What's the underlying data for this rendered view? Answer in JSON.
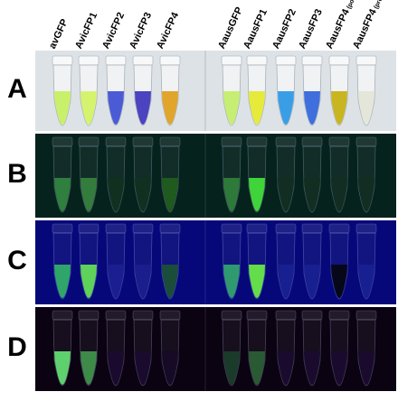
{
  "columns": [
    {
      "name": "avGFP",
      "sub": ""
    },
    {
      "name": "AvicFP1",
      "sub": ""
    },
    {
      "name": "AvicFP2",
      "sub": ""
    },
    {
      "name": "AvicFP3",
      "sub": ""
    },
    {
      "name": "AvicFP4",
      "sub": ""
    },
    {
      "name": "AausGFP",
      "sub": ""
    },
    {
      "name": "AausFP1",
      "sub": ""
    },
    {
      "name": "AausFP2",
      "sub": ""
    },
    {
      "name": "AausFP3",
      "sub": ""
    },
    {
      "name": "AausFP4",
      "sub": "(post)"
    },
    {
      "name": "AausFP4",
      "sub": "(pre)"
    }
  ],
  "rows": [
    {
      "label": "A",
      "background": "#dde2e6",
      "liquid": [
        "#c8f06a",
        "#d6f36e",
        "#4b5bd6",
        "#4b43c0",
        "#e0a52a",
        "#c6ee72",
        "#e6ea3a",
        "#3a9ee6",
        "#3f6fdc",
        "#c9b520",
        "#e4e6da"
      ]
    },
    {
      "label": "B",
      "background": "#06221c",
      "liquid": [
        "#2f7f3e",
        "#347c3c",
        "#12301f",
        "#11301f",
        "#1f5a1e",
        "#2e7a3a",
        "#3fd43a",
        "#122e22",
        "#122e22",
        "#122e22",
        "#122e22"
      ]
    },
    {
      "label": "C",
      "background": "#06087a",
      "liquid": [
        "#2fa56a",
        "#5fd25a",
        "#1a1e90",
        "#1a1e8c",
        "#1a4e3a",
        "#2f9a70",
        "#63dd4a",
        "#181f90",
        "#181f90",
        "#06081a",
        "#181f90"
      ]
    },
    {
      "label": "D",
      "background": "#0b0212",
      "liquid": [
        "#5fd06e",
        "#3e8a48",
        "#1a0b2e",
        "#1a0b2e",
        "#160a26",
        "#1a3a2a",
        "#2a5a34",
        "#1a0b2e",
        "#1a0b2e",
        "#1a0b2e",
        "#1a0b2e"
      ]
    }
  ]
}
